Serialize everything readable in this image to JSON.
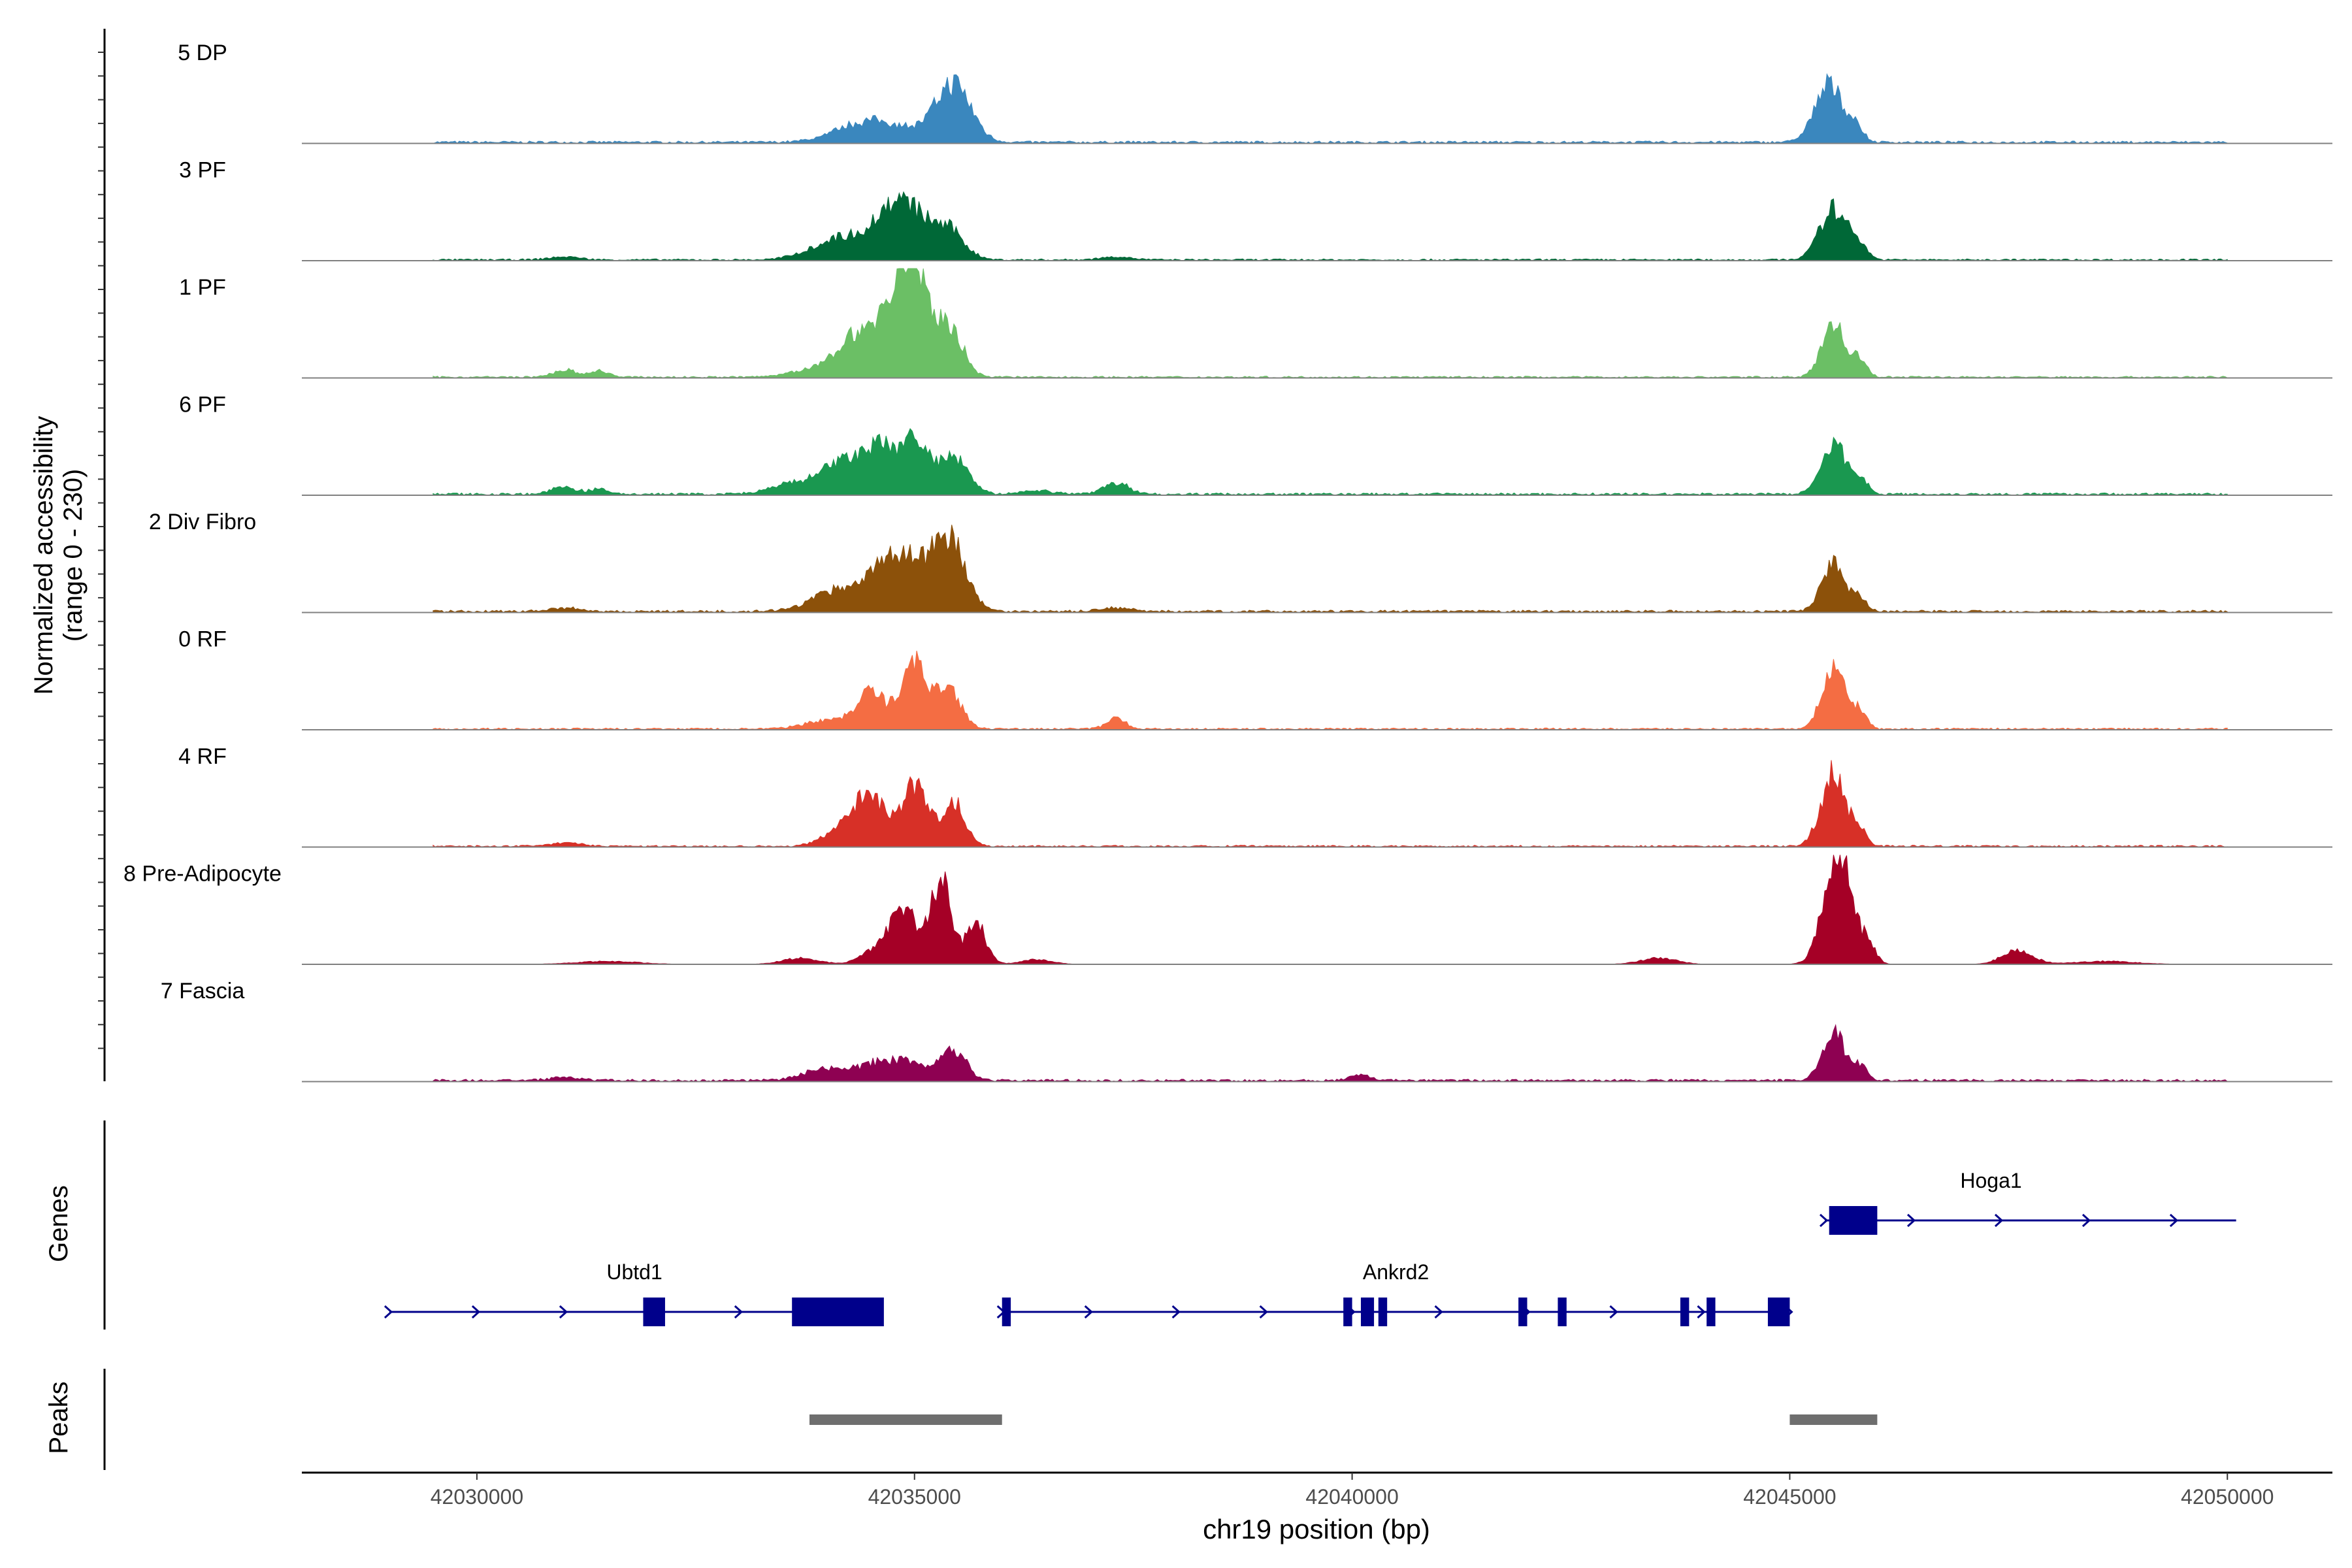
{
  "chart_data": {
    "type": "area",
    "title": "",
    "ylabel_line1": "Normalized accessibility",
    "ylabel_line2": "(range 0 - 230)",
    "xlabel": "chr19 position (bp)",
    "xlim": [
      42028000,
      42051200
    ],
    "ylim": [
      0,
      230
    ],
    "xticks": [
      42030000,
      42035000,
      42040000,
      42045000,
      42050000
    ],
    "xtick_labels": [
      "42030000",
      "42035000",
      "42040000",
      "42045000",
      "42050000"
    ],
    "tracks": [
      {
        "name": "5 DP",
        "color": "#3A87BE",
        "peaks": [
          [
            42034400,
            30,
            450
          ],
          [
            42034900,
            18,
            450
          ],
          [
            42035450,
            95,
            280
          ],
          [
            42045450,
            95,
            230
          ],
          [
            42045750,
            20,
            120
          ]
        ],
        "baseline": 4
      },
      {
        "name": "3 PF",
        "color": "#006837",
        "peaks": [
          [
            42033800,
            10,
            300
          ],
          [
            42034200,
            35,
            350
          ],
          [
            42034700,
            65,
            300
          ],
          [
            42035000,
            60,
            300
          ],
          [
            42035400,
            45,
            250
          ],
          [
            42045500,
            85,
            220
          ],
          [
            42045800,
            25,
            120
          ],
          [
            42031000,
            5,
            250
          ],
          [
            42037300,
            5,
            250
          ]
        ],
        "baseline": 3
      },
      {
        "name": "1 PF",
        "color": "#6BBF65",
        "peaks": [
          [
            42033900,
            15,
            400
          ],
          [
            42034300,
            60,
            250
          ],
          [
            42034700,
            100,
            250
          ],
          [
            42035000,
            180,
            230
          ],
          [
            42035400,
            80,
            220
          ],
          [
            42031000,
            12,
            180
          ],
          [
            42031400,
            10,
            150
          ],
          [
            42045500,
            90,
            180
          ],
          [
            42045800,
            30,
            110
          ]
        ],
        "baseline": 3
      },
      {
        "name": "6 PF",
        "color": "#1A9850",
        "peaks": [
          [
            42033700,
            20,
            400
          ],
          [
            42034200,
            50,
            300
          ],
          [
            42034600,
            70,
            250
          ],
          [
            42035000,
            90,
            230
          ],
          [
            42035450,
            60,
            230
          ],
          [
            42031000,
            12,
            200
          ],
          [
            42031400,
            8,
            150
          ],
          [
            42037300,
            20,
            200
          ],
          [
            42045500,
            85,
            200
          ],
          [
            42045800,
            25,
            130
          ],
          [
            42036400,
            6,
            250
          ]
        ],
        "baseline": 4
      },
      {
        "name": "2 Div Fibro",
        "color": "#8C510A",
        "peaks": [
          [
            42034200,
            40,
            450
          ],
          [
            42034700,
            65,
            280
          ],
          [
            42035000,
            60,
            280
          ],
          [
            42035400,
            120,
            260
          ],
          [
            42045500,
            80,
            190
          ],
          [
            42045800,
            20,
            120
          ],
          [
            42031000,
            6,
            250
          ],
          [
            42037300,
            6,
            250
          ]
        ],
        "baseline": 4
      },
      {
        "name": "0 RF",
        "color": "#F46D43",
        "peaks": [
          [
            42034000,
            15,
            350
          ],
          [
            42034500,
            60,
            230
          ],
          [
            42035000,
            110,
            220
          ],
          [
            42035400,
            60,
            200
          ],
          [
            42037300,
            18,
            150
          ],
          [
            42045500,
            105,
            180
          ],
          [
            42045800,
            30,
            110
          ]
        ],
        "baseline": 3
      },
      {
        "name": "4 RF",
        "color": "#D73027",
        "peaks": [
          [
            42034200,
            30,
            300
          ],
          [
            42034500,
            80,
            230
          ],
          [
            42035000,
            100,
            220
          ],
          [
            42035450,
            75,
            180
          ],
          [
            42045500,
            120,
            200
          ],
          [
            42045800,
            25,
            110
          ],
          [
            42031000,
            6,
            250
          ]
        ],
        "baseline": 3
      },
      {
        "name": "8 Pre-Adipocyte",
        "color": "#A50026",
        "peaks": [
          [
            42034600,
            30,
            250
          ],
          [
            42034900,
            90,
            200
          ],
          [
            42035300,
            140,
            160
          ],
          [
            42035700,
            70,
            160
          ],
          [
            42045550,
            190,
            220
          ],
          [
            42045900,
            30,
            120
          ],
          [
            42033700,
            10,
            300
          ],
          [
            42047600,
            22,
            250
          ],
          [
            42043500,
            10,
            300
          ],
          [
            42036400,
            8,
            250
          ],
          [
            42031500,
            5,
            500
          ],
          [
            42048600,
            5,
            500
          ]
        ],
        "baseline": 0
      },
      {
        "name": "7 Fascia",
        "color": "#8E0152",
        "peaks": [
          [
            42034000,
            20,
            350
          ],
          [
            42034600,
            30,
            300
          ],
          [
            42035000,
            28,
            250
          ],
          [
            42035450,
            50,
            200
          ],
          [
            42040100,
            10,
            150
          ],
          [
            42045500,
            80,
            180
          ],
          [
            42045800,
            25,
            110
          ],
          [
            42031000,
            5,
            250
          ]
        ],
        "baseline": 4
      }
    ],
    "genes_label": "Genes",
    "peaks_label": "Peaks",
    "genes": [
      {
        "name": "Ubtd1",
        "label_pos": 42031800,
        "row": 2,
        "start": 42029000,
        "end": 42034600,
        "exons": [
          [
            42031900,
            42032150
          ],
          [
            42033600,
            42034650
          ]
        ],
        "strand": "+"
      },
      {
        "name": "Ankrd2",
        "label_pos": 42040500,
        "row": 2,
        "start": 42036000,
        "end": 42045000,
        "exons": [
          [
            42036000,
            42036100
          ],
          [
            42039900,
            42040000
          ],
          [
            42040100,
            42040250
          ],
          [
            42040300,
            42040400
          ],
          [
            42041900,
            42042000
          ],
          [
            42042350,
            42042450
          ],
          [
            42043750,
            42043850
          ],
          [
            42044050,
            42044150
          ],
          [
            42044750,
            42045000
          ]
        ],
        "strand": "+"
      },
      {
        "name": "Hoga1",
        "label_pos": 42047300,
        "row": 1,
        "start": 42045400,
        "end": 42050100,
        "exons": [
          [
            42045450,
            42046000
          ]
        ],
        "strand": "+"
      }
    ],
    "peak_regions": [
      [
        42033800,
        42036000
      ],
      [
        42045000,
        42046000
      ]
    ],
    "colors": {
      "gene": "#00008B",
      "peak": "#6E6E6E",
      "baseline": "#808080"
    }
  }
}
